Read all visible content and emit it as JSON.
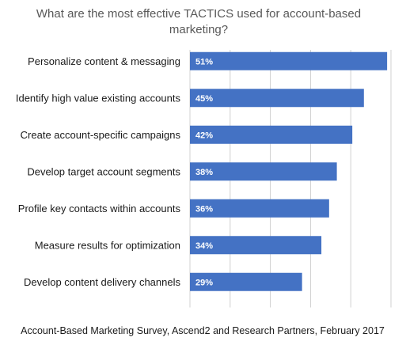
{
  "chart_data": {
    "type": "bar",
    "orientation": "horizontal",
    "title_lines": [
      "What are the most effective TACTICS used for account-based",
      "marketing?"
    ],
    "categories": [
      "Personalize content & messaging",
      "Identify high value existing accounts",
      "Create account-specific campaigns",
      "Develop target account segments",
      "Profile key contacts within accounts",
      "Measure results for optimization",
      "Develop content delivery channels"
    ],
    "values": [
      51,
      45,
      42,
      38,
      36,
      34,
      29
    ],
    "value_labels": [
      "51%",
      "45%",
      "42%",
      "38%",
      "36%",
      "34%",
      "29%"
    ],
    "xlim": [
      0,
      52
    ],
    "grid": true,
    "bar_color": "#4472C4",
    "source": "Account-Based Marketing Survey, Ascend2 and Research Partners, February 2017"
  }
}
